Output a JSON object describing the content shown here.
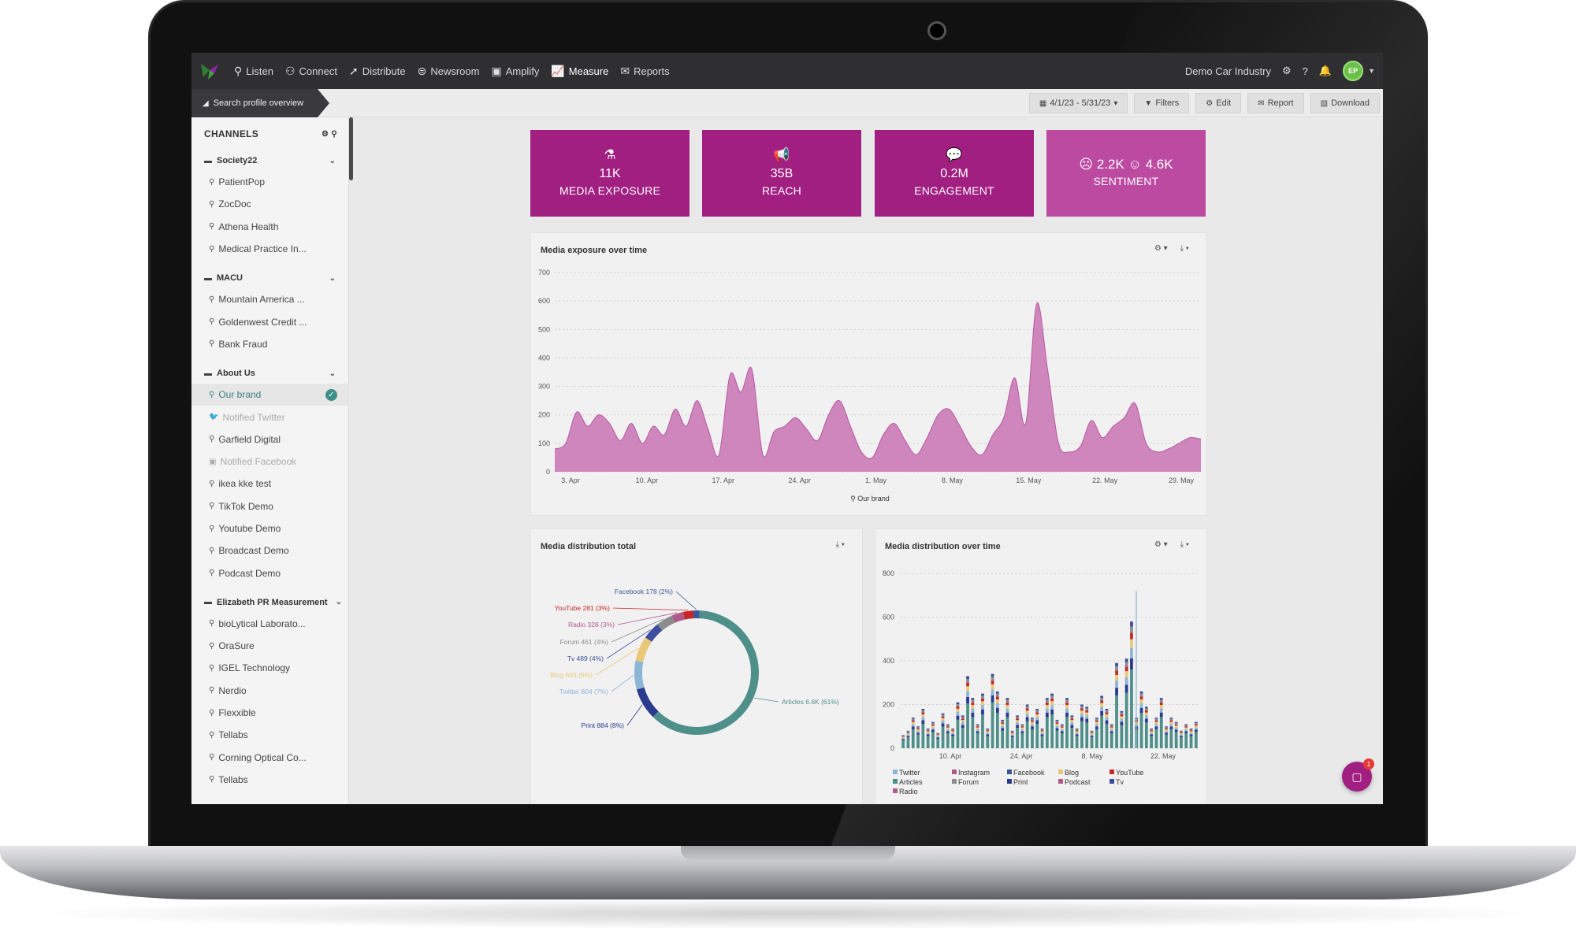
{
  "topbar": {
    "nav": [
      {
        "label": "Listen",
        "icon": "listen-icon"
      },
      {
        "label": "Connect",
        "icon": "connect-icon"
      },
      {
        "label": "Distribute",
        "icon": "paper-plane-icon"
      },
      {
        "label": "Newsroom",
        "icon": "newsroom-icon"
      },
      {
        "label": "Amplify",
        "icon": "amplify-icon"
      },
      {
        "label": "Measure",
        "icon": "chart-line-icon"
      },
      {
        "label": "Reports",
        "icon": "envelope-icon"
      }
    ],
    "account": "Demo Car Industry",
    "avatar_initials": "EP"
  },
  "breadcrumb": "Search profile overview",
  "toolbar": {
    "date_range": "4/1/23 - 5/31/23",
    "filters": "Filters",
    "edit": "Edit",
    "report": "Report",
    "download": "Download"
  },
  "sidebar": {
    "title": "CHANNELS",
    "groups": [
      {
        "name": "Society22",
        "items": [
          "PatientPop",
          "ZocDoc",
          "Athena Health",
          "Medical Practice In..."
        ]
      },
      {
        "name": "MACU",
        "items": [
          "Mountain America ...",
          "Goldenwest Credit ...",
          "Bank Fraud"
        ]
      },
      {
        "name": "About Us",
        "items": [
          "Our brand",
          "Notified Twitter",
          "Garfield Digital",
          "Notified Facebook",
          "ikea kke test",
          "TikTok Demo",
          "Youtube Demo",
          "Broadcast Demo",
          "Podcast Demo"
        ]
      },
      {
        "name": "Elizabeth PR Measurement",
        "items": [
          "bioLytical Laborato...",
          "OraSure",
          "IGEL Technology",
          "Nerdio",
          "Flexxible",
          "Tellabs",
          "Corning Optical Co...",
          "Tellabs"
        ]
      }
    ]
  },
  "kpis": [
    {
      "value": "11K",
      "label": "MEDIA EXPOSURE",
      "icon": "flask-icon"
    },
    {
      "value": "35B",
      "label": "REACH",
      "icon": "megaphone-icon"
    },
    {
      "value": "0.2M",
      "label": "ENGAGEMENT",
      "icon": "comments-icon"
    },
    {
      "value": "☹ 2.2K ☺ 4.6K",
      "label": "SENTIMENT",
      "icon": "sentiment-icon"
    }
  ],
  "chart_data": [
    {
      "type": "area",
      "title": "Media exposure over time",
      "ylim": [
        0,
        700
      ],
      "yticks": [
        0,
        100,
        200,
        300,
        400,
        500,
        600,
        700
      ],
      "xtick_labels": [
        "3. Apr",
        "10. Apr",
        "17. Apr",
        "24. Apr",
        "1. May",
        "8. May",
        "15. May",
        "22. May",
        "29. May"
      ],
      "x_start": "2023-04-01",
      "x_end": "2023-05-31",
      "series": [
        {
          "name": "Our brand",
          "color": "#c873b4",
          "values": [
            80,
            100,
            210,
            160,
            200,
            170,
            110,
            170,
            100,
            160,
            130,
            220,
            160,
            250,
            150,
            60,
            340,
            280,
            360,
            60,
            140,
            160,
            190,
            150,
            110,
            200,
            250,
            160,
            70,
            50,
            130,
            170,
            110,
            60,
            120,
            200,
            220,
            160,
            90,
            60,
            130,
            190,
            330,
            170,
            590,
            360,
            100,
            70,
            90,
            180,
            120,
            160,
            190,
            240,
            100,
            70,
            80,
            100,
            120,
            115
          ]
        }
      ],
      "legend": "bottom"
    },
    {
      "type": "pie",
      "title": "Media distribution total",
      "slices": [
        {
          "label": "Articles",
          "value": 6600,
          "display": "Articles 6.6K (61%)",
          "color": "#4f8f8a"
        },
        {
          "label": "Print",
          "value": 884,
          "display": "Print 884 (8%)",
          "color": "#2a3a8c"
        },
        {
          "label": "Twitter",
          "value": 804,
          "display": "Twitter 804 (7%)",
          "color": "#8db5d6"
        },
        {
          "label": "Blog",
          "value": 693,
          "display": "Blog 693 (6%)",
          "color": "#e8c877"
        },
        {
          "label": "Tv",
          "value": 489,
          "display": "Tv 489 (4%)",
          "color": "#3d4f9c"
        },
        {
          "label": "Forum",
          "value": 461,
          "display": "Forum 461 (4%)",
          "color": "#8c8c8c"
        },
        {
          "label": "Radio",
          "value": 328,
          "display": "Radio 328 (3%)",
          "color": "#b05a8a"
        },
        {
          "label": "YouTube",
          "value": 281,
          "display": "YouTube 281 (3%)",
          "color": "#c62828"
        },
        {
          "label": "Facebook",
          "value": 178,
          "display": "Facebook 178 (2%)",
          "color": "#3b5998"
        }
      ]
    },
    {
      "type": "bar",
      "title": "Media distribution over time",
      "stacked": true,
      "ylim": [
        0,
        800
      ],
      "yticks": [
        0,
        200,
        400,
        600,
        800
      ],
      "xtick_labels": [
        "10. Apr",
        "24. Apr",
        "8. May",
        "22. May"
      ],
      "series_names": [
        "Twitter",
        "Instagram",
        "Facebook",
        "Blog",
        "YouTube",
        "Articles",
        "Forum",
        "Print",
        "Podcast",
        "Tv",
        "Radio"
      ],
      "totals": [
        60,
        80,
        140,
        100,
        180,
        90,
        120,
        70,
        160,
        110,
        90,
        210,
        150,
        330,
        230,
        110,
        250,
        90,
        340,
        260,
        130,
        230,
        80,
        150,
        110,
        200,
        140,
        180,
        90,
        230,
        250,
        130,
        110,
        230,
        150,
        90,
        200,
        190,
        80,
        140,
        240,
        180,
        110,
        390,
        170,
        410,
        580,
        140,
        260,
        190,
        90,
        140,
        230,
        100,
        140,
        120,
        80,
        110,
        90,
        120
      ]
    }
  ],
  "legend_dist": [
    "Twitter",
    "Instagram",
    "Facebook",
    "Blog",
    "YouTube",
    "Articles",
    "Forum",
    "Print",
    "Podcast",
    "Tv",
    "Radio"
  ],
  "chat_badge": "1"
}
